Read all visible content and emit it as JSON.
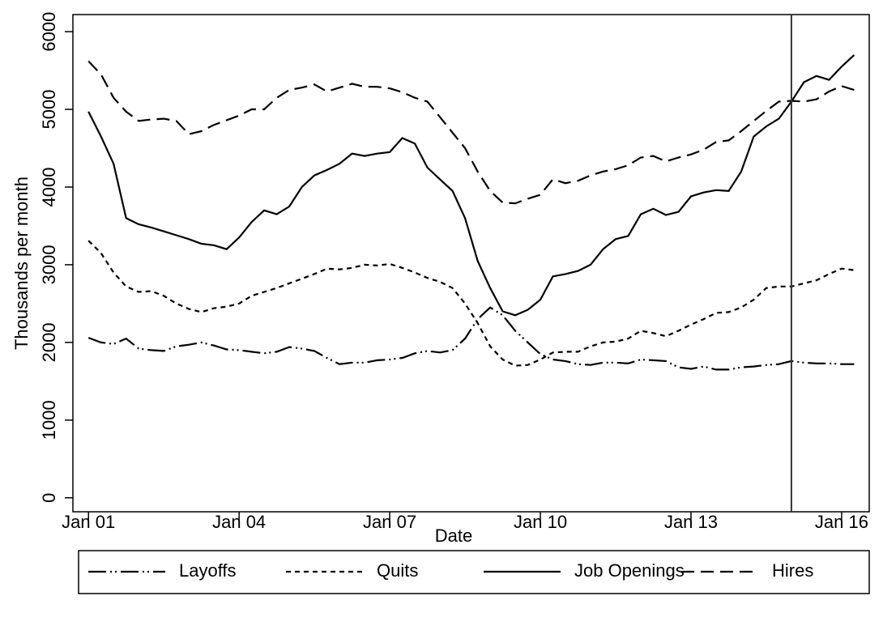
{
  "chart_data": {
    "type": "line",
    "x_label": "Date",
    "y_label": "Thousands per month",
    "xlim": [
      2000.69,
      2016.55
    ],
    "ylim": [
      -180,
      6220
    ],
    "xticks": [
      {
        "value": 2001,
        "label": "Jan 01"
      },
      {
        "value": 2004,
        "label": "Jan 04"
      },
      {
        "value": 2007,
        "label": "Jan 07"
      },
      {
        "value": 2010,
        "label": "Jan 10"
      },
      {
        "value": 2013,
        "label": "Jan 13"
      },
      {
        "value": 2016,
        "label": "Jan 16"
      }
    ],
    "yticks": [
      0,
      1000,
      2000,
      3000,
      4000,
      5000,
      6000
    ],
    "vline": 2015,
    "grid": false,
    "legend_position": "bottom",
    "x": [
      2001,
      2001.25,
      2001.5,
      2001.75,
      2002,
      2002.25,
      2002.5,
      2002.75,
      2003,
      2003.25,
      2003.5,
      2003.75,
      2004,
      2004.25,
      2004.5,
      2004.75,
      2005,
      2005.25,
      2005.5,
      2005.75,
      2006,
      2006.25,
      2006.5,
      2006.75,
      2007,
      2007.25,
      2007.5,
      2007.75,
      2008,
      2008.25,
      2008.5,
      2008.75,
      2009,
      2009.25,
      2009.5,
      2009.75,
      2010,
      2010.25,
      2010.5,
      2010.75,
      2011,
      2011.25,
      2011.5,
      2011.75,
      2012,
      2012.25,
      2012.5,
      2012.75,
      2013,
      2013.25,
      2013.5,
      2013.75,
      2014,
      2014.25,
      2014.5,
      2014.75,
      2015,
      2015.25,
      2015.5,
      2015.75,
      2016,
      2016.25
    ],
    "series": [
      {
        "name": "Layoffs",
        "color": "#000000",
        "dash": "22 5 2 4 2 5",
        "values": [
          2060,
          2000,
          1980,
          2050,
          1920,
          1900,
          1890,
          1950,
          1970,
          2000,
          1960,
          1910,
          1900,
          1880,
          1860,
          1880,
          1940,
          1920,
          1890,
          1800,
          1720,
          1740,
          1740,
          1770,
          1780,
          1800,
          1860,
          1890,
          1870,
          1900,
          2050,
          2300,
          2450,
          2350,
          2150,
          2000,
          1850,
          1780,
          1760,
          1720,
          1710,
          1740,
          1740,
          1730,
          1780,
          1770,
          1760,
          1680,
          1660,
          1690,
          1650,
          1650,
          1680,
          1690,
          1710,
          1720,
          1760,
          1740,
          1730,
          1730,
          1720,
          1720
        ]
      },
      {
        "name": "Quits",
        "color": "#000000",
        "dash": "6 5",
        "values": [
          3310,
          3150,
          2900,
          2720,
          2650,
          2660,
          2600,
          2500,
          2430,
          2390,
          2440,
          2460,
          2500,
          2600,
          2650,
          2700,
          2760,
          2820,
          2880,
          2950,
          2940,
          2960,
          3000,
          2990,
          3010,
          2960,
          2900,
          2830,
          2780,
          2700,
          2500,
          2250,
          1950,
          1780,
          1700,
          1710,
          1780,
          1870,
          1880,
          1880,
          1950,
          2000,
          2010,
          2050,
          2150,
          2120,
          2080,
          2150,
          2230,
          2300,
          2380,
          2390,
          2450,
          2550,
          2700,
          2720,
          2720,
          2760,
          2800,
          2880,
          2950,
          2930
        ]
      },
      {
        "name": "Job Openings",
        "color": "#000000",
        "dash": "none",
        "values": [
          4970,
          4650,
          4300,
          3600,
          3520,
          3480,
          3430,
          3380,
          3330,
          3270,
          3250,
          3200,
          3350,
          3550,
          3700,
          3650,
          3750,
          4000,
          4150,
          4220,
          4300,
          4430,
          4400,
          4430,
          4450,
          4630,
          4560,
          4250,
          4100,
          3950,
          3600,
          3050,
          2700,
          2400,
          2350,
          2420,
          2550,
          2850,
          2880,
          2920,
          3000,
          3200,
          3330,
          3370,
          3650,
          3720,
          3640,
          3680,
          3880,
          3930,
          3960,
          3950,
          4200,
          4650,
          4780,
          4880,
          5100,
          5350,
          5430,
          5380,
          5550,
          5700
        ]
      },
      {
        "name": "Hires",
        "color": "#000000",
        "dash": "16 8",
        "values": [
          5620,
          5450,
          5150,
          4970,
          4850,
          4870,
          4880,
          4850,
          4680,
          4720,
          4800,
          4860,
          4920,
          5000,
          5000,
          5150,
          5250,
          5280,
          5320,
          5230,
          5280,
          5330,
          5290,
          5290,
          5270,
          5220,
          5150,
          5100,
          4900,
          4700,
          4500,
          4200,
          3950,
          3800,
          3790,
          3850,
          3900,
          4100,
          4050,
          4080,
          4150,
          4200,
          4230,
          4280,
          4380,
          4400,
          4330,
          4380,
          4420,
          4480,
          4580,
          4600,
          4720,
          4850,
          4980,
          5100,
          5110,
          5100,
          5130,
          5230,
          5300,
          5250
        ]
      }
    ]
  }
}
